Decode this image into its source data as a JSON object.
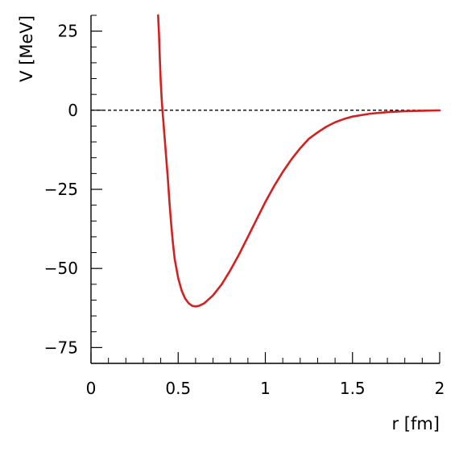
{
  "chart_data": {
    "type": "line",
    "title": "",
    "xlabel": "r [fm]",
    "ylabel": "V [MeV]",
    "xlim": [
      0,
      2
    ],
    "ylim": [
      -80,
      30
    ],
    "x_ticks": [
      0,
      0.5,
      1,
      1.5,
      2
    ],
    "x_tick_labels": [
      "0",
      "0.5",
      "1",
      "1.5",
      "2"
    ],
    "y_ticks": [
      25,
      0,
      -25,
      -50,
      -75
    ],
    "y_tick_labels": [
      "25",
      "0",
      "−25",
      "−50",
      "−75"
    ],
    "reference_line": {
      "y": 0,
      "style": "dashed",
      "color": "#000000"
    },
    "grid": false,
    "legend": "none",
    "series": [
      {
        "color": "#d42020",
        "points": [
          [
            0.385,
            30
          ],
          [
            0.39,
            24
          ],
          [
            0.395,
            16
          ],
          [
            0.4,
            9
          ],
          [
            0.405,
            4
          ],
          [
            0.41,
            0
          ],
          [
            0.42,
            -7
          ],
          [
            0.43,
            -14
          ],
          [
            0.44,
            -21
          ],
          [
            0.45,
            -29
          ],
          [
            0.46,
            -36
          ],
          [
            0.47,
            -42
          ],
          [
            0.48,
            -47
          ],
          [
            0.5,
            -53
          ],
          [
            0.52,
            -57
          ],
          [
            0.54,
            -59.5
          ],
          [
            0.56,
            -61
          ],
          [
            0.58,
            -61.8
          ],
          [
            0.6,
            -62
          ],
          [
            0.62,
            -61.8
          ],
          [
            0.65,
            -61
          ],
          [
            0.7,
            -58.5
          ],
          [
            0.75,
            -55
          ],
          [
            0.8,
            -50.5
          ],
          [
            0.85,
            -45.5
          ],
          [
            0.9,
            -40
          ],
          [
            0.95,
            -34.5
          ],
          [
            1.0,
            -29
          ],
          [
            1.05,
            -24
          ],
          [
            1.1,
            -19.5
          ],
          [
            1.15,
            -15.5
          ],
          [
            1.2,
            -12
          ],
          [
            1.25,
            -9
          ],
          [
            1.3,
            -7
          ],
          [
            1.35,
            -5.2
          ],
          [
            1.4,
            -3.8
          ],
          [
            1.45,
            -2.8
          ],
          [
            1.5,
            -2
          ],
          [
            1.6,
            -1.1
          ],
          [
            1.7,
            -0.6
          ],
          [
            1.8,
            -0.3
          ],
          [
            1.9,
            -0.15
          ],
          [
            2.0,
            -0.05
          ]
        ]
      }
    ]
  }
}
